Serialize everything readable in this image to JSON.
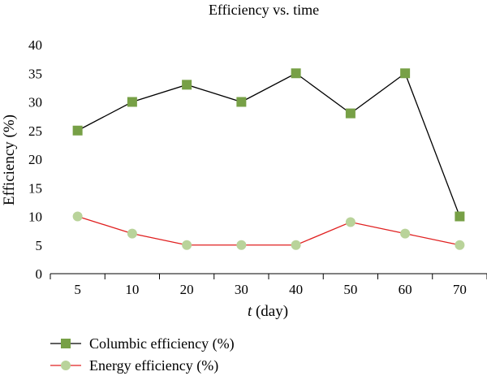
{
  "chart_data": {
    "type": "line",
    "title": "Efficiency vs. time",
    "xlabel_italic": "t",
    "xlabel_rest": " (day)",
    "ylabel": "Efficiency (%)",
    "categories": [
      "5",
      "10",
      "20",
      "30",
      "40",
      "50",
      "60",
      "70"
    ],
    "ylim": [
      0,
      40
    ],
    "yticks": [
      "0",
      "5",
      "10",
      "15",
      "20",
      "25",
      "30",
      "35",
      "40"
    ],
    "grid": false,
    "legend_position": "bottom-left",
    "series": [
      {
        "name": "Columbic efficiency (%)",
        "values": [
          25,
          30,
          33,
          30,
          35,
          28,
          35,
          10
        ],
        "line_color": "#000000",
        "marker": "square",
        "marker_color": "#77a046"
      },
      {
        "name": "Energy efficiency (%)",
        "values": [
          10,
          7,
          5,
          5,
          5,
          9,
          7,
          5
        ],
        "line_color": "#e02020",
        "marker": "circle",
        "marker_color": "#b9d39a"
      }
    ]
  }
}
